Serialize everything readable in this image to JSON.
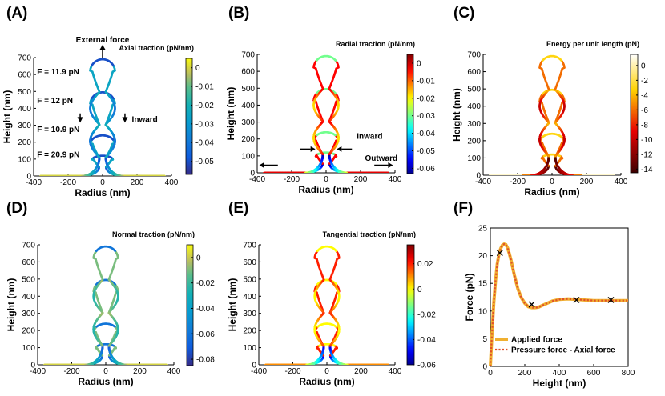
{
  "chart_data": [
    {
      "panel": "(A)",
      "type": "line",
      "xlabel": "Radius (nm)",
      "ylabel": "Height (nm)",
      "xlim": [
        -400,
        400
      ],
      "ylim": [
        0,
        700
      ],
      "xticks": [
        -400,
        -200,
        0,
        200,
        400
      ],
      "yticks": [
        0,
        100,
        200,
        300,
        400,
        500,
        600,
        700
      ],
      "colorbar": {
        "title": "Axial traction (pN/nm)",
        "colormap": "parula",
        "range": [
          -0.057,
          0.005
        ],
        "ticks": [
          0,
          -0.01,
          -0.02,
          -0.03,
          -0.04,
          -0.05
        ],
        "tick_labels": [
          "0",
          "-0.01",
          "-0.02",
          "-0.03",
          "-0.04",
          "-0.05"
        ]
      },
      "annotations": [
        {
          "text": "External force",
          "x": 0,
          "y": 790,
          "arrow": "up"
        },
        {
          "text": "F = 11.9 pN",
          "x": -380,
          "y": 600
        },
        {
          "text": "F = 12 pN",
          "x": -380,
          "y": 430
        },
        {
          "text": "F = 10.9 pN",
          "x": -380,
          "y": 260
        },
        {
          "text": "F = 20.9 pN",
          "x": -380,
          "y": 110
        },
        {
          "text": "Inward",
          "x": 170,
          "y": 320,
          "arrow": "down"
        }
      ],
      "series": [
        {
          "tip_height": 120,
          "neck_radius": 20,
          "bulb_radius": 60
        },
        {
          "tip_height": 240,
          "neck_radius": 20,
          "bulb_radius": 70
        },
        {
          "tip_height": 495,
          "neck_radius": 18,
          "bulb_radius": 72
        },
        {
          "tip_height": 690,
          "neck_radius": 18,
          "bulb_radius": 72
        }
      ],
      "color_rule": "A"
    },
    {
      "panel": "(B)",
      "type": "line",
      "xlabel": "Radius (nm)",
      "ylabel": "Height (nm)",
      "xlim": [
        -400,
        400
      ],
      "ylim": [
        0,
        700
      ],
      "xticks": [
        -400,
        -200,
        0,
        200,
        400
      ],
      "yticks": [
        0,
        100,
        200,
        300,
        400,
        500,
        600,
        700
      ],
      "colorbar": {
        "title": "Radial traction (pN/nm)",
        "colormap": "jet",
        "range": [
          -0.063,
          0.005
        ],
        "ticks": [
          0,
          -0.01,
          -0.02,
          -0.03,
          -0.04,
          -0.05,
          -0.06
        ],
        "tick_labels": [
          "0",
          "-0.01",
          "-0.02",
          "-0.03",
          "-0.04",
          "-0.05",
          "-0.06"
        ]
      },
      "annotations": [
        {
          "text": "Inward",
          "x": 150,
          "y": 200
        },
        {
          "text": "Outward",
          "x": 310,
          "y": 70
        }
      ],
      "series": [
        {
          "tip_height": 120,
          "neck_radius": 20,
          "bulb_radius": 60
        },
        {
          "tip_height": 240,
          "neck_radius": 20,
          "bulb_radius": 70
        },
        {
          "tip_height": 495,
          "neck_radius": 18,
          "bulb_radius": 72
        },
        {
          "tip_height": 690,
          "neck_radius": 18,
          "bulb_radius": 72
        }
      ],
      "color_rule": "B"
    },
    {
      "panel": "(C)",
      "type": "line",
      "xlabel": "Radius (nm)",
      "ylabel": "Height (nm)",
      "xlim": [
        -400,
        400
      ],
      "ylim": [
        0,
        700
      ],
      "xticks": [
        -400,
        -200,
        0,
        200,
        400
      ],
      "yticks": [
        0,
        100,
        200,
        300,
        400,
        500,
        600,
        700
      ],
      "colorbar": {
        "title": "Energy per unit length (pN)",
        "colormap": "hot",
        "range": [
          -14.5,
          1.5
        ],
        "ticks": [
          0,
          -2,
          -4,
          -6,
          -8,
          -10,
          -12,
          -14
        ],
        "tick_labels": [
          "0",
          "-2",
          "-4",
          "-6",
          "-8",
          "-10",
          "-12",
          "-14"
        ]
      },
      "annotations": [],
      "series": [
        {
          "tip_height": 120,
          "neck_radius": 20,
          "bulb_radius": 60
        },
        {
          "tip_height": 240,
          "neck_radius": 20,
          "bulb_radius": 70
        },
        {
          "tip_height": 495,
          "neck_radius": 18,
          "bulb_radius": 72
        },
        {
          "tip_height": 690,
          "neck_radius": 18,
          "bulb_radius": 72
        }
      ],
      "color_rule": "C"
    },
    {
      "panel": "(D)",
      "type": "line",
      "xlabel": "Radius (nm)",
      "ylabel": "Height (nm)",
      "xlim": [
        -400,
        400
      ],
      "ylim": [
        0,
        700
      ],
      "xticks": [
        -400,
        -200,
        0,
        200,
        400
      ],
      "yticks": [
        0,
        100,
        200,
        300,
        400,
        500,
        600,
        700
      ],
      "colorbar": {
        "title": "Normal traction (pN/nm)",
        "colormap": "parula",
        "range": [
          -0.085,
          0.01
        ],
        "ticks": [
          0,
          -0.02,
          -0.04,
          -0.06,
          -0.08
        ],
        "tick_labels": [
          "0",
          "-0.02",
          "-0.04",
          "-0.06",
          "-0.08"
        ]
      },
      "annotations": [],
      "series": [
        {
          "tip_height": 120,
          "neck_radius": 20,
          "bulb_radius": 60
        },
        {
          "tip_height": 240,
          "neck_radius": 20,
          "bulb_radius": 70
        },
        {
          "tip_height": 495,
          "neck_radius": 18,
          "bulb_radius": 72
        },
        {
          "tip_height": 690,
          "neck_radius": 18,
          "bulb_radius": 72
        }
      ],
      "color_rule": "D"
    },
    {
      "panel": "(E)",
      "type": "line",
      "xlabel": "Radius (nm)",
      "ylabel": "Height (nm)",
      "xlim": [
        -400,
        400
      ],
      "ylim": [
        0,
        700
      ],
      "xticks": [
        -400,
        -200,
        0,
        200,
        400
      ],
      "yticks": [
        0,
        100,
        200,
        300,
        400,
        500,
        600,
        700
      ],
      "colorbar": {
        "title": "Tangential traction (pN/nm)",
        "colormap": "jet",
        "range": [
          -0.06,
          0.035
        ],
        "ticks": [
          0.02,
          0,
          -0.02,
          -0.04,
          -0.06
        ],
        "tick_labels": [
          "0.02",
          "0",
          "-0.02",
          "-0.04",
          "-0.06"
        ]
      },
      "annotations": [],
      "series": [
        {
          "tip_height": 120,
          "neck_radius": 20,
          "bulb_radius": 60
        },
        {
          "tip_height": 240,
          "neck_radius": 20,
          "bulb_radius": 70
        },
        {
          "tip_height": 495,
          "neck_radius": 18,
          "bulb_radius": 72
        },
        {
          "tip_height": 690,
          "neck_radius": 18,
          "bulb_radius": 72
        }
      ],
      "color_rule": "E"
    },
    {
      "panel": "(F)",
      "type": "line",
      "xlabel": "Height (nm)",
      "ylabel": "Force (pN)",
      "xlim": [
        0,
        800
      ],
      "ylim": [
        0,
        25
      ],
      "xticks": [
        0,
        200,
        400,
        600,
        800
      ],
      "yticks": [
        0,
        5,
        10,
        15,
        20,
        25
      ],
      "legend": "bottom-right",
      "series": [
        {
          "name": "Applied force",
          "color": "#f0b030",
          "style": "solid",
          "x": [
            0,
            10,
            20,
            30,
            40,
            50,
            60,
            70,
            80,
            90,
            100,
            110,
            120,
            140,
            160,
            180,
            200,
            220,
            240,
            260,
            280,
            300,
            330,
            360,
            400,
            450,
            500,
            550,
            600,
            650,
            700,
            750,
            800
          ],
          "y": [
            0,
            6.0,
            11.5,
            15.5,
            18.5,
            20.3,
            21.3,
            21.9,
            22.1,
            22.0,
            21.4,
            20.4,
            19.2,
            16.4,
            14.0,
            12.4,
            11.4,
            10.8,
            10.6,
            10.6,
            10.7,
            11.0,
            11.4,
            11.8,
            12.1,
            12.2,
            12.1,
            12.0,
            11.9,
            11.9,
            11.9,
            11.9,
            11.9
          ]
        },
        {
          "name": "Pressure force - Axial force",
          "color": "#e0502a",
          "style": "dotted",
          "x": [
            0,
            10,
            20,
            30,
            40,
            50,
            60,
            70,
            80,
            90,
            100,
            110,
            120,
            140,
            160,
            180,
            200,
            220,
            240,
            260,
            280,
            300,
            330,
            360,
            400,
            450,
            500,
            550,
            600,
            650,
            700,
            750,
            800
          ],
          "y": [
            0,
            6.0,
            11.5,
            15.5,
            18.5,
            20.3,
            21.3,
            21.9,
            22.1,
            22.0,
            21.4,
            20.4,
            19.2,
            16.4,
            14.0,
            12.4,
            11.4,
            10.8,
            10.6,
            10.6,
            10.7,
            11.0,
            11.4,
            11.8,
            12.1,
            12.2,
            12.1,
            12.0,
            11.9,
            11.9,
            11.9,
            11.9,
            11.9
          ]
        }
      ],
      "markers": [
        {
          "x": 55,
          "y": 20.5
        },
        {
          "x": 240,
          "y": 11.2
        },
        {
          "x": 500,
          "y": 12.0
        },
        {
          "x": 700,
          "y": 12.0
        }
      ]
    }
  ]
}
